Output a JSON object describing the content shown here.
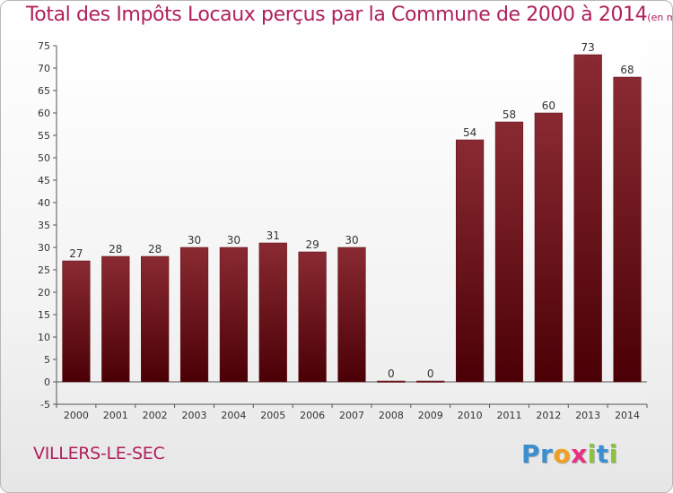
{
  "header": {
    "title": "Total des Impôts Locaux perçus par la Commune de 2000 à 2014",
    "unit": "(en milliers d'€)"
  },
  "commune": "VILLERS-LE-SEC",
  "logo": {
    "letters": [
      "P",
      "r",
      "o",
      "x",
      "i",
      "t",
      "i"
    ],
    "colors": [
      "#3a8fd0",
      "#3a8fd0",
      "#f0a020",
      "#e83080",
      "#8ac43a",
      "#3a8fd0",
      "#8ac43a"
    ]
  },
  "chart_data": {
    "type": "bar",
    "title": "Total des Impôts Locaux perçus par la Commune de 2000 à 2014",
    "categories": [
      "2000",
      "2001",
      "2002",
      "2003",
      "2004",
      "2005",
      "2006",
      "2007",
      "2008",
      "2009",
      "2010",
      "2011",
      "2012",
      "2013",
      "2014"
    ],
    "values": [
      27,
      28,
      28,
      30,
      30,
      31,
      29,
      30,
      0,
      0,
      54,
      58,
      60,
      73,
      68
    ],
    "ylim": [
      -5,
      75
    ],
    "yticks": [
      -5,
      0,
      5,
      10,
      15,
      20,
      25,
      30,
      35,
      40,
      45,
      50,
      55,
      60,
      65,
      70,
      75
    ],
    "grid": false,
    "bar_color": "#7a1820"
  }
}
